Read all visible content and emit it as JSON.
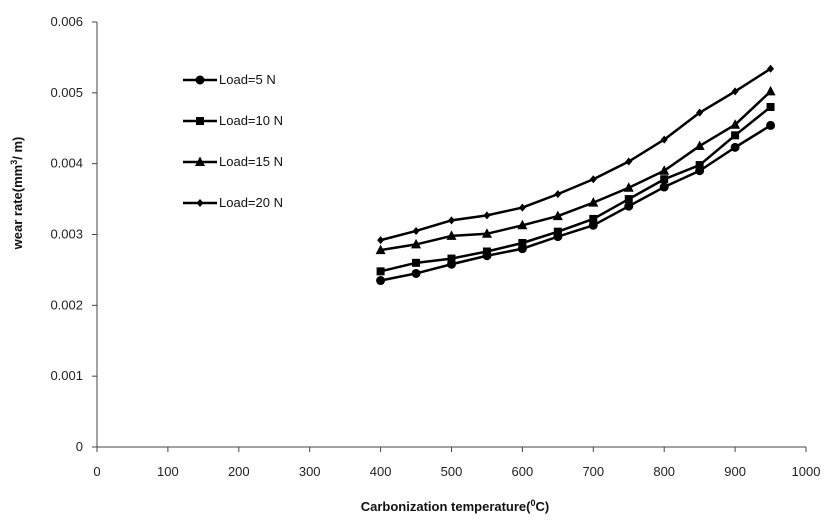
{
  "chart_data": {
    "type": "line",
    "title": "",
    "xlabel": "Carbonization temperature(",
    "xlabel_sup": "0",
    "xlabel_end": "C)",
    "ylabel": "wear rate(mm",
    "ylabel_sup": "3",
    "ylabel_end": "/ m)",
    "xlim": [
      0,
      1000
    ],
    "ylim": [
      0,
      0.006
    ],
    "xticks": [
      0,
      100,
      200,
      300,
      400,
      500,
      600,
      700,
      800,
      900,
      1000
    ],
    "yticks": [
      0,
      0.001,
      0.002,
      0.003,
      0.004,
      0.005,
      0.006
    ],
    "xtick_labels": [
      "0",
      "100",
      "200",
      "300",
      "400",
      "500",
      "600",
      "700",
      "800",
      "900",
      "1000"
    ],
    "ytick_labels": [
      "0",
      "0.001",
      "0.002",
      "0.003",
      "0.004",
      "0.005",
      "0.006"
    ],
    "grid": false,
    "legend_position": "upper-left",
    "line_color": "#000000",
    "x": [
      400,
      450,
      500,
      550,
      600,
      650,
      700,
      750,
      800,
      850,
      900,
      950
    ],
    "series": [
      {
        "name": "Load=5 N",
        "marker": "circle",
        "values": [
          0.00235,
          0.00245,
          0.00258,
          0.0027,
          0.0028,
          0.00297,
          0.00313,
          0.0034,
          0.00367,
          0.0039,
          0.00423,
          0.00454
        ]
      },
      {
        "name": "Load=10 N",
        "marker": "square",
        "values": [
          0.00248,
          0.0026,
          0.00266,
          0.00276,
          0.00288,
          0.00304,
          0.00322,
          0.0035,
          0.00378,
          0.00398,
          0.0044,
          0.0048
        ]
      },
      {
        "name": "Load=15 N",
        "marker": "triangle",
        "values": [
          0.00278,
          0.00286,
          0.00298,
          0.00301,
          0.00313,
          0.00326,
          0.00345,
          0.00366,
          0.0039,
          0.00425,
          0.00455,
          0.00502
        ]
      },
      {
        "name": "Load=20 N",
        "marker": "diamond",
        "values": [
          0.00292,
          0.00305,
          0.0032,
          0.00327,
          0.00338,
          0.00357,
          0.00378,
          0.00403,
          0.00434,
          0.00472,
          0.00502,
          0.00534
        ]
      }
    ]
  }
}
